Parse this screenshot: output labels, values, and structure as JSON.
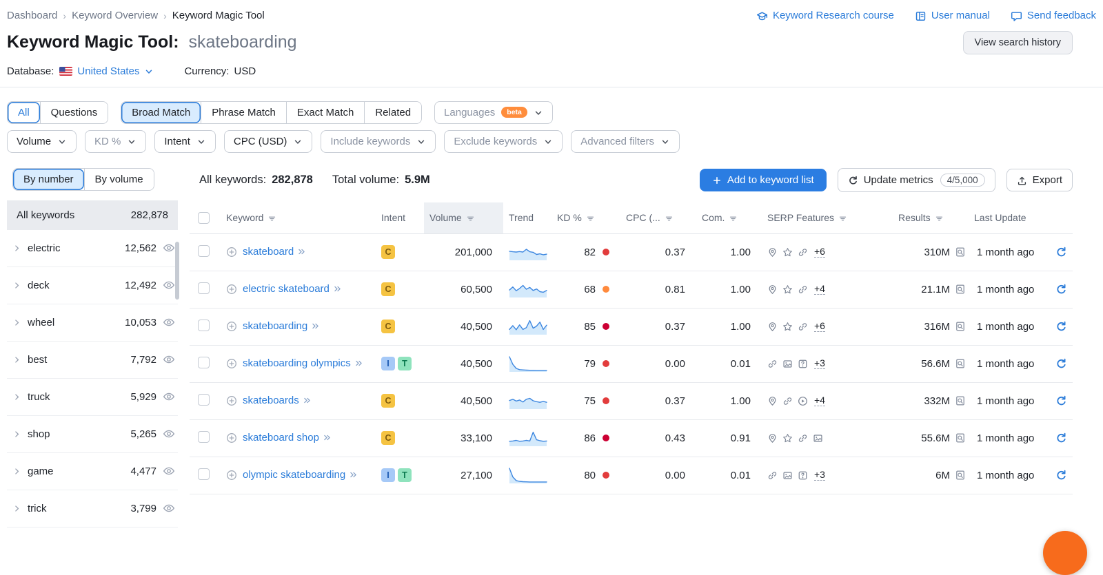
{
  "colors": {
    "accent_blue": "#2b7cd9",
    "spark_line": "#3d87e0",
    "spark_fill": "#d3e9fb",
    "kd_red": "#e23c3c",
    "kd_dark_red": "#cc0033",
    "kd_orange": "#ff8a3d",
    "chat_bubble": "#f76b1c"
  },
  "breadcrumb": {
    "items": [
      "Dashboard",
      "Keyword Overview",
      "Keyword Magic Tool"
    ]
  },
  "top_links": [
    {
      "icon": "course",
      "label": "Keyword Research course"
    },
    {
      "icon": "manual",
      "label": "User manual"
    },
    {
      "icon": "feedback",
      "label": "Send feedback"
    }
  ],
  "title": {
    "prefix": "Keyword Magic Tool:",
    "query": "skateboarding"
  },
  "actions": {
    "view_search_history": "View search history"
  },
  "database_bar": {
    "database_label": "Database:",
    "database_value": "United States",
    "currency_label": "Currency:",
    "currency_value": "USD"
  },
  "match_tabs": {
    "group1": [
      {
        "label": "All",
        "style": "outline"
      },
      {
        "label": "Questions",
        "style": "plain"
      }
    ],
    "group2": [
      {
        "label": "Broad Match",
        "style": "selected"
      },
      {
        "label": "Phrase Match",
        "style": "plain"
      },
      {
        "label": "Exact Match",
        "style": "plain"
      },
      {
        "label": "Related",
        "style": "plain"
      }
    ],
    "languages": {
      "label": "Languages",
      "badge": "beta"
    }
  },
  "filter_dropdowns": [
    {
      "label": "Volume",
      "muted": false
    },
    {
      "label": "KD %",
      "muted": true
    },
    {
      "label": "Intent",
      "muted": false
    },
    {
      "label": "CPC (USD)",
      "muted": false
    },
    {
      "label": "Include keywords",
      "muted": true
    },
    {
      "label": "Exclude keywords",
      "muted": true
    },
    {
      "label": "Advanced filters",
      "muted": true
    }
  ],
  "sidebar": {
    "toggle": [
      {
        "label": "By number",
        "selected": true
      },
      {
        "label": "By volume",
        "selected": false
      }
    ],
    "all_row": {
      "label": "All keywords",
      "count": "282,878"
    },
    "groups": [
      {
        "label": "electric",
        "count": "12,562"
      },
      {
        "label": "deck",
        "count": "12,492"
      },
      {
        "label": "wheel",
        "count": "10,053"
      },
      {
        "label": "best",
        "count": "7,792"
      },
      {
        "label": "truck",
        "count": "5,929"
      },
      {
        "label": "shop",
        "count": "5,265"
      },
      {
        "label": "game",
        "count": "4,477"
      },
      {
        "label": "trick",
        "count": "3,799"
      }
    ]
  },
  "toolbar": {
    "all_keywords_label": "All keywords:",
    "all_keywords_value": "282,878",
    "total_volume_label": "Total volume:",
    "total_volume_value": "5.9M",
    "add_button": "Add to keyword list",
    "update_button": "Update metrics",
    "update_quota": "4/5,000",
    "export_button": "Export"
  },
  "intent_styles": {
    "C": {
      "bg": "#f5c342",
      "fg": "#7d5a10"
    },
    "I": {
      "bg": "#a6c9f7",
      "fg": "#1a57b0"
    },
    "T": {
      "bg": "#8fe3bd",
      "fg": "#0b7a4f"
    }
  },
  "table": {
    "columns": [
      {
        "key": "keyword",
        "label": "Keyword",
        "sort": true,
        "sorted": false
      },
      {
        "key": "intent",
        "label": "Intent",
        "sort": false,
        "sorted": false
      },
      {
        "key": "volume",
        "label": "Volume",
        "sort": true,
        "sorted": true
      },
      {
        "key": "trend",
        "label": "Trend",
        "sort": false,
        "sorted": false
      },
      {
        "key": "kd",
        "label": "KD %",
        "sort": true,
        "sorted": false
      },
      {
        "key": "cpc",
        "label": "CPC (...",
        "sort": true,
        "sorted": false
      },
      {
        "key": "com",
        "label": "Com.",
        "sort": true,
        "sorted": false
      },
      {
        "key": "serp",
        "label": "SERP Features",
        "sort": true,
        "sorted": false
      },
      {
        "key": "results",
        "label": "Results",
        "sort": true,
        "sorted": false
      },
      {
        "key": "last_update",
        "label": "Last Update",
        "sort": false,
        "sorted": false
      }
    ],
    "rows": [
      {
        "keyword": "skateboard",
        "intents": [
          "C"
        ],
        "volume": "201,000",
        "trend": [
          55,
          52,
          50,
          53,
          50,
          68,
          52,
          48,
          34,
          38,
          32,
          36
        ],
        "kd": "82",
        "kd_color": "#e23c3c",
        "cpc": "0.37",
        "com": "1.00",
        "serp_icons": [
          "location",
          "star",
          "link"
        ],
        "serp_more": "+6",
        "results": "310M",
        "last_update": "1 month ago"
      },
      {
        "keyword": "electric skateboard",
        "intents": [
          "C"
        ],
        "volume": "60,500",
        "trend": [
          45,
          65,
          40,
          55,
          75,
          50,
          62,
          42,
          52,
          34,
          30,
          42
        ],
        "kd": "68",
        "kd_color": "#ff8a3d",
        "cpc": "0.81",
        "com": "1.00",
        "serp_icons": [
          "location",
          "star",
          "link"
        ],
        "serp_more": "+4",
        "results": "21.1M",
        "last_update": "1 month ago"
      },
      {
        "keyword": "skateboarding",
        "intents": [
          "C"
        ],
        "volume": "40,500",
        "trend": [
          30,
          55,
          28,
          60,
          30,
          42,
          88,
          38,
          52,
          78,
          30,
          58
        ],
        "kd": "85",
        "kd_color": "#cc0033",
        "cpc": "0.37",
        "com": "1.00",
        "serp_icons": [
          "location",
          "star",
          "link"
        ],
        "serp_more": "+6",
        "results": "316M",
        "last_update": "1 month ago"
      },
      {
        "keyword": "skateboarding olympics",
        "intents": [
          "I",
          "T"
        ],
        "volume": "40,500",
        "trend": [
          95,
          45,
          18,
          10,
          8,
          7,
          6,
          6,
          5,
          5,
          5,
          5
        ],
        "kd": "79",
        "kd_color": "#e23c3c",
        "cpc": "0.00",
        "com": "0.01",
        "serp_icons": [
          "link",
          "image",
          "question"
        ],
        "serp_more": "+3",
        "results": "56.6M",
        "last_update": "1 month ago"
      },
      {
        "keyword": "skateboards",
        "intents": [
          "C"
        ],
        "volume": "40,500",
        "trend": [
          52,
          60,
          48,
          55,
          42,
          60,
          66,
          50,
          44,
          40,
          46,
          40
        ],
        "kd": "75",
        "kd_color": "#e23c3c",
        "cpc": "0.37",
        "com": "1.00",
        "serp_icons": [
          "location",
          "link",
          "play"
        ],
        "serp_more": "+4",
        "results": "332M",
        "last_update": "1 month ago"
      },
      {
        "keyword": "skateboard shop",
        "intents": [
          "C"
        ],
        "volume": "33,100",
        "trend": [
          28,
          30,
          34,
          28,
          30,
          34,
          30,
          88,
          38,
          32,
          28,
          30
        ],
        "kd": "86",
        "kd_color": "#cc0033",
        "cpc": "0.43",
        "com": "0.91",
        "serp_icons": [
          "location",
          "star",
          "link",
          "image"
        ],
        "serp_more": null,
        "results": "55.6M",
        "last_update": "1 month ago"
      },
      {
        "keyword": "olympic skateboarding",
        "intents": [
          "I",
          "T"
        ],
        "volume": "27,100",
        "trend": [
          95,
          38,
          14,
          9,
          7,
          6,
          5,
          5,
          5,
          5,
          5,
          5
        ],
        "kd": "80",
        "kd_color": "#e23c3c",
        "cpc": "0.00",
        "com": "0.01",
        "serp_icons": [
          "link",
          "image",
          "question"
        ],
        "serp_more": "+3",
        "results": "6M",
        "last_update": "1 month ago"
      }
    ]
  }
}
